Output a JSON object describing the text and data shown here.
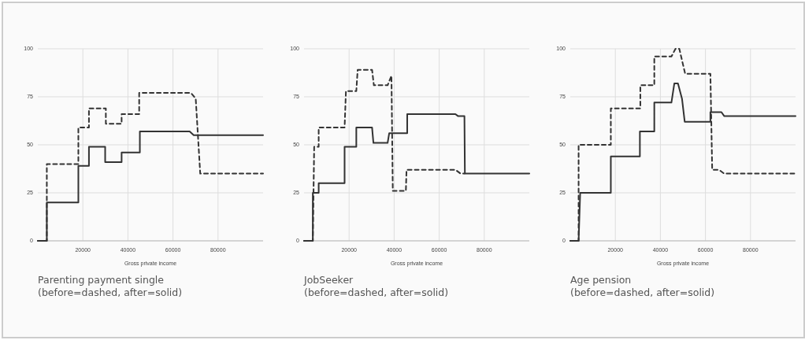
{
  "chart_data": [
    {
      "type": "line",
      "title": "Parenting payment single",
      "annotations": [
        "(before=dashed, after=solid)"
      ],
      "xlabel": "Gross private income",
      "xlim": [
        0,
        100000
      ],
      "xticks": [
        20000,
        40000,
        60000,
        80000
      ],
      "ylim": [
        0,
        100
      ],
      "yticks": [
        0,
        25,
        50,
        75,
        100
      ],
      "grid": true,
      "series": [
        {
          "color": "#333333",
          "line_style": "dashed",
          "x": [
            0,
            4000,
            4000,
            18000,
            18000,
            22700,
            22700,
            30200,
            30200,
            37200,
            37200,
            45000,
            45000,
            68000,
            70100,
            72100,
            72100,
            100000
          ],
          "values": [
            0,
            0,
            40,
            40,
            59,
            59,
            69,
            69,
            61,
            61,
            66,
            66,
            77,
            77,
            74,
            35,
            35,
            35
          ]
        },
        {
          "color": "#333333",
          "line_style": "solid",
          "x": [
            0,
            4000,
            4000,
            18000,
            18000,
            22700,
            22700,
            29900,
            29900,
            37200,
            37200,
            45300,
            45300,
            67400,
            69200,
            100000
          ],
          "values": [
            0,
            0,
            20,
            20,
            39,
            39,
            49,
            49,
            41,
            41,
            46,
            46,
            57,
            57,
            55,
            55
          ]
        }
      ]
    },
    {
      "type": "line",
      "title": "JobSeeker",
      "annotations": [
        "(before=dashed, after=solid)"
      ],
      "xlabel": "Gross private income",
      "xlim": [
        0,
        100000
      ],
      "xticks": [
        20000,
        40000,
        60000,
        80000
      ],
      "ylim": [
        0,
        100
      ],
      "yticks": [
        0,
        25,
        50,
        75,
        100
      ],
      "grid": true,
      "series": [
        {
          "color": "#333333",
          "line_style": "dashed",
          "x": [
            0,
            3900,
            4500,
            6500,
            6500,
            18000,
            18600,
            23200,
            23800,
            30200,
            31000,
            37100,
            38800,
            39400,
            45200,
            45500,
            67200,
            69500,
            71200
          ],
          "values": [
            0,
            0,
            49,
            49,
            59,
            59,
            78,
            78,
            89,
            89,
            81,
            81,
            86,
            26,
            26,
            37,
            37,
            35,
            35
          ]
        },
        {
          "color": "#333333",
          "line_style": "solid",
          "x": [
            0,
            3900,
            3900,
            6500,
            6500,
            18000,
            18000,
            23200,
            23200,
            30200,
            30800,
            37100,
            37800,
            45800,
            45800,
            67200,
            68300,
            71200,
            71400,
            100000
          ],
          "values": [
            0,
            0,
            25,
            25,
            30,
            30,
            49,
            49,
            59,
            59,
            51,
            51,
            56,
            56,
            66,
            66,
            65,
            65,
            35,
            35
          ]
        }
      ]
    },
    {
      "type": "line",
      "title": "Age pension",
      "annotations": [
        "(before=dashed, after=solid)"
      ],
      "xlabel": "Gross private income",
      "xlim": [
        0,
        100000
      ],
      "xticks": [
        20000,
        40000,
        60000,
        80000
      ],
      "ylim": [
        0,
        100
      ],
      "yticks": [
        0,
        25,
        50,
        75,
        100
      ],
      "grid": true,
      "series": [
        {
          "color": "#333333",
          "line_style": "dashed",
          "x": [
            0,
            3700,
            3700,
            18000,
            18000,
            31100,
            31100,
            37300,
            37300,
            44900,
            46700,
            48400,
            51000,
            62200,
            63000,
            66000,
            68300,
            100000
          ],
          "values": [
            0,
            0,
            50,
            50,
            69,
            69,
            81,
            81,
            96,
            96,
            100,
            100,
            87,
            87,
            37,
            37,
            35,
            35
          ]
        },
        {
          "color": "#333333",
          "line_style": "solid",
          "x": [
            0,
            3700,
            4400,
            18000,
            18000,
            30900,
            30900,
            37300,
            37300,
            44900,
            46200,
            47800,
            49600,
            50800,
            62200,
            62200,
            67100,
            68300,
            100000
          ],
          "values": [
            0,
            0,
            25,
            25,
            44,
            44,
            57,
            57,
            72,
            72,
            82,
            82,
            74,
            62,
            62,
            67,
            67,
            65,
            65
          ]
        }
      ]
    }
  ]
}
